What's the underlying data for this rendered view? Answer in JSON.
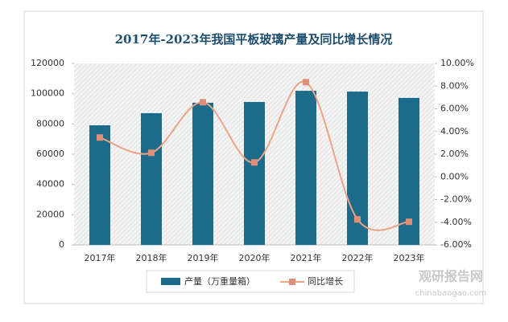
{
  "chart_data": {
    "type": "bar",
    "title": "2017年-2023年我国平板玻璃产量及同比增长情况",
    "categories": [
      "2017年",
      "2018年",
      "2019年",
      "2020年",
      "2021年",
      "2022年",
      "2023年"
    ],
    "series": [
      {
        "name": "产量（万重量箱）",
        "color": "#1d6b8a",
        "values": [
          79100,
          87100,
          94000,
          94500,
          101900,
          101400,
          97200
        ]
      },
      {
        "name": "同比增长",
        "color": "#eda385",
        "type": "line",
        "axis": "y2",
        "values": [
          3.47,
          2.12,
          6.58,
          1.27,
          8.35,
          -3.75,
          -3.96
        ]
      }
    ],
    "ylim": [
      0,
      120000
    ],
    "yticks": [
      0,
      20000,
      40000,
      60000,
      80000,
      100000,
      120000
    ],
    "y2lim": [
      -6,
      10
    ],
    "y2ticks": [
      {
        "value": -6,
        "label": "-6.00%"
      },
      {
        "value": -4,
        "label": "-4.00%"
      },
      {
        "value": -2,
        "label": "-2.00%"
      },
      {
        "value": 0,
        "label": "0.00%"
      },
      {
        "value": 2,
        "label": "2.00%"
      },
      {
        "value": 4,
        "label": "4.00%"
      },
      {
        "value": 6,
        "label": "6.00%"
      },
      {
        "value": 8,
        "label": "8.00%"
      },
      {
        "value": 10,
        "label": "10.00%"
      }
    ],
    "legend": "bottom"
  },
  "watermark": {
    "name": "观研报告网",
    "url": "chinabaogao.com"
  }
}
